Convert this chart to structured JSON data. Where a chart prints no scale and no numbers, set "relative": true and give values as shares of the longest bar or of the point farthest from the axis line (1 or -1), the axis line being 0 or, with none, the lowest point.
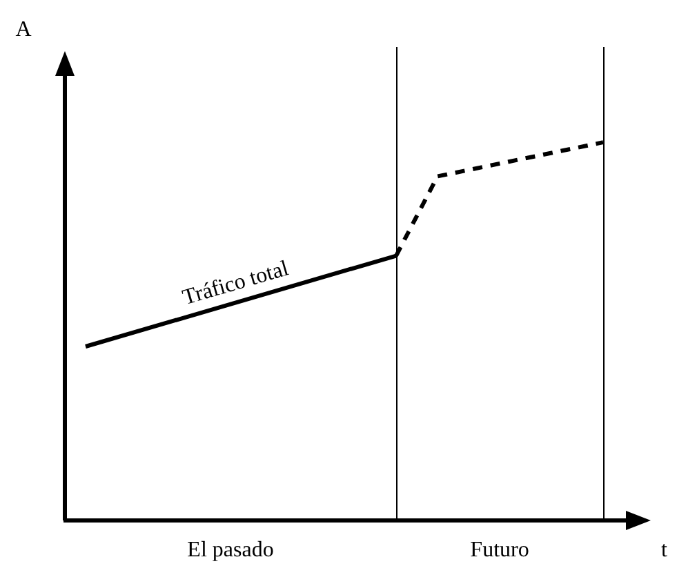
{
  "chart_data": {
    "type": "line",
    "relative": true,
    "xlabel": "t",
    "ylabel": "A",
    "grid": false,
    "legend": false,
    "marker": "none",
    "categories": [
      null,
      null,
      null,
      null,
      null,
      null,
      null,
      null,
      null,
      null,
      null,
      null,
      null,
      null,
      null,
      null,
      null,
      null,
      null,
      null,
      null,
      null,
      null,
      null,
      null,
      null,
      null,
      null,
      null
    ],
    "series": [
      {
        "name": "Tráfico total",
        "color": "#000000",
        "line_style": "solid",
        "values": [
          null,
          0.46,
          null,
          null,
          null,
          null,
          null,
          null,
          null,
          null,
          null,
          null,
          null,
          null,
          null,
          null,
          0.7,
          null,
          null,
          null,
          null,
          null,
          null,
          null,
          null,
          null,
          null,
          null,
          null
        ]
      },
      {
        "color": "#000000",
        "line_style": "dashed",
        "values": [
          null,
          null,
          null,
          null,
          null,
          null,
          null,
          null,
          null,
          null,
          null,
          null,
          null,
          null,
          null,
          null,
          0.7,
          null,
          0.91,
          null,
          null,
          null,
          null,
          null,
          null,
          null,
          1,
          null,
          null
        ]
      }
    ],
    "annotations": [
      "El pasado",
      "Futuro"
    ]
  }
}
